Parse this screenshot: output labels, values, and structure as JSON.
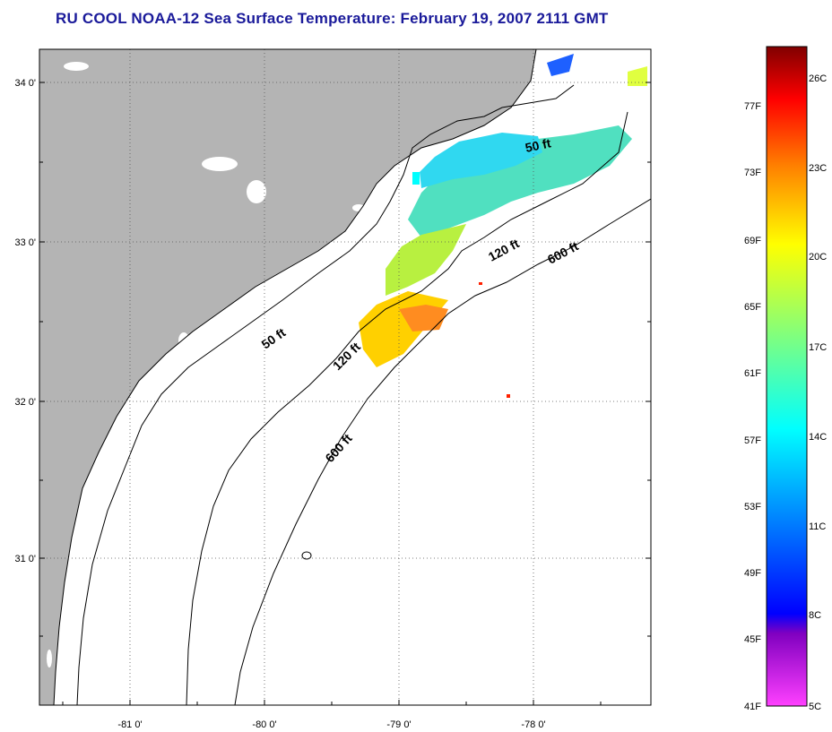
{
  "title": "RU COOL  NOAA-12  Sea Surface Temperature:  February 19, 2007 2111 GMT",
  "map": {
    "lat_ticks": [
      "34 0'",
      "33 0'",
      "32 0'",
      "31 0'"
    ],
    "lon_ticks": [
      "-81 0'",
      "-80 0'",
      "-79 0'",
      "-78 0'"
    ],
    "contour_labels": [
      "50 ft",
      "120 ft",
      "600 ft",
      "50 ft",
      "120 ft",
      "600 ft"
    ],
    "colors": {
      "land": "#b4b4b4",
      "ocean": "#ffffff",
      "coastline": "#000000",
      "grid": "#555555"
    }
  },
  "colorbar": {
    "fahrenheit_labels": [
      "77F",
      "73F",
      "69F",
      "65F",
      "61F",
      "57F",
      "53F",
      "49F",
      "45F",
      "41F"
    ],
    "celsius_labels": [
      "26C",
      "23C",
      "20C",
      "17C",
      "14C",
      "11C",
      "8C",
      "5C"
    ],
    "colors": [
      "#800000",
      "#ff0000",
      "#ff7f00",
      "#ffff00",
      "#7fff7f",
      "#00ffff",
      "#0080ff",
      "#0000ff",
      "#8000c0",
      "#ff40ff"
    ]
  }
}
